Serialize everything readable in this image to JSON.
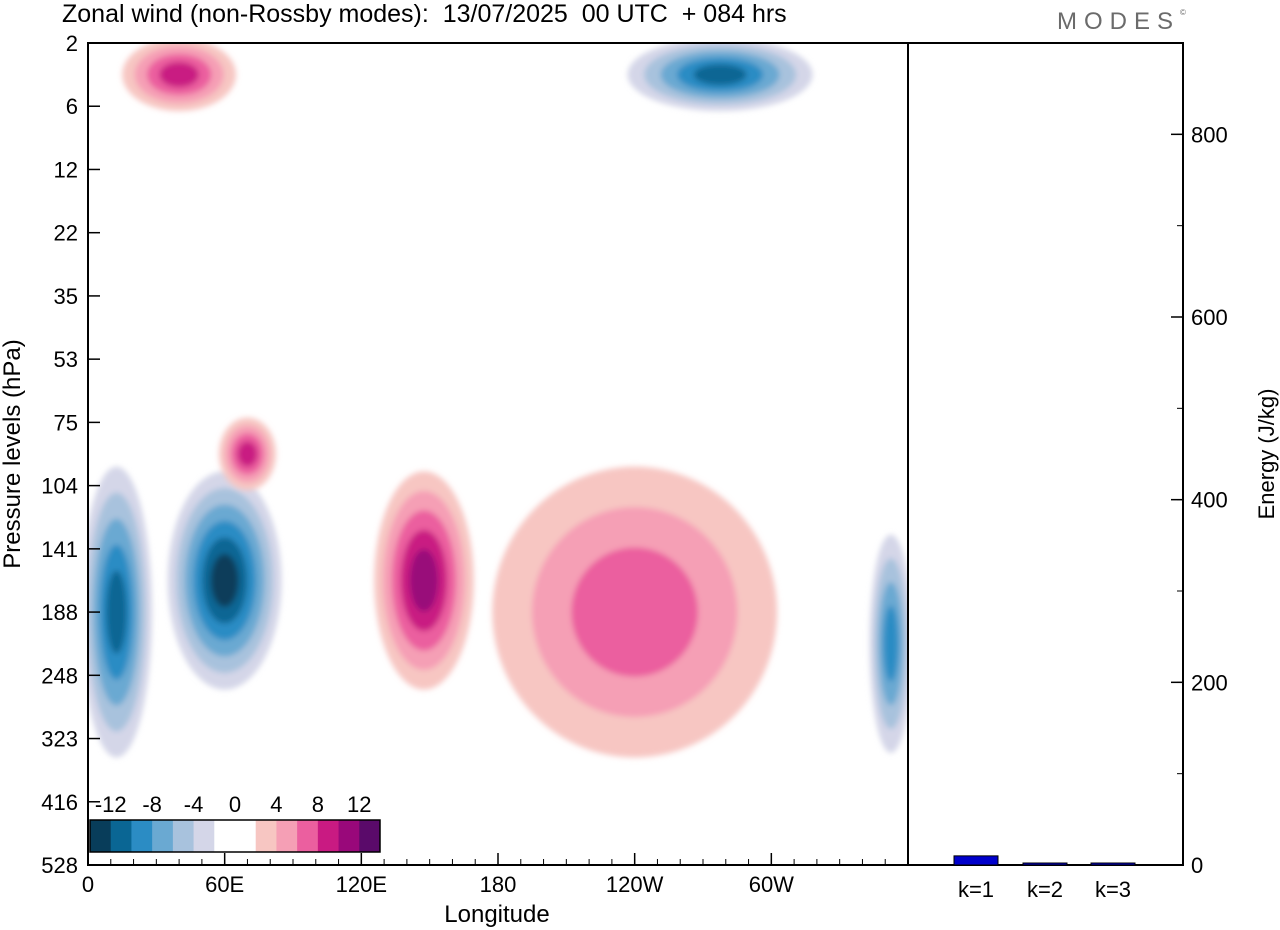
{
  "title": "Zonal wind (non-Rossby modes):  13/07/2025  00 UTC  + 084 hrs",
  "logo": "MODES",
  "chart_data": [
    {
      "type": "heatmap",
      "name": "zonal-wind-section",
      "xlabel": "Longitude",
      "ylabel": "Pressure levels (hPa)",
      "x_ticks": [
        "0",
        "60E",
        "120E",
        "180",
        "120W",
        "60W"
      ],
      "x_tick_degrees": [
        0,
        60,
        120,
        180,
        240,
        300
      ],
      "xlim": [
        0,
        360
      ],
      "y_ticks": [
        "2",
        "6",
        "12",
        "22",
        "35",
        "53",
        "75",
        "104",
        "141",
        "188",
        "248",
        "323",
        "416",
        "528"
      ],
      "colorbar": {
        "labels": [
          "-12",
          "-8",
          "-4",
          "0",
          "4",
          "8",
          "12"
        ],
        "colors": [
          "#083d5a",
          "#0a6694",
          "#2b8cc4",
          "#6aa9d2",
          "#a8c2dd",
          "#d4d6e8",
          "#ffffff",
          "#ffffff",
          "#f7c6c2",
          "#f59fb5",
          "#eb5f9f",
          "#c91a82",
          "#99087a",
          "#5a0a6a"
        ]
      },
      "features": [
        {
          "lon": [
            40,
            80
          ],
          "level": [
            104,
            248
          ],
          "value": -14
        },
        {
          "lon": [
            0,
            25
          ],
          "level": [
            104,
            323
          ],
          "value": -10
        },
        {
          "lon": [
            130,
            165
          ],
          "level": [
            104,
            248
          ],
          "value": 10
        },
        {
          "lon": [
            190,
            290
          ],
          "level": [
            104,
            323
          ],
          "value": 6
        },
        {
          "lon": [
            20,
            60
          ],
          "level": [
            2,
            6
          ],
          "value": 8
        },
        {
          "lon": [
            245,
            310
          ],
          "level": [
            2,
            6
          ],
          "value": -10
        },
        {
          "lon": [
            60,
            80
          ],
          "level": [
            75,
            104
          ],
          "value": 8
        },
        {
          "lon": [
            345,
            360
          ],
          "level": [
            141,
            323
          ],
          "value": -8
        }
      ]
    },
    {
      "type": "bar",
      "name": "energy-spectrum",
      "categories": [
        "k=1",
        "k=2",
        "k=3"
      ],
      "values": [
        10,
        2,
        1
      ],
      "ylabel": "Energy (J/kg)",
      "ylim": [
        0,
        900
      ],
      "y_ticks": [
        0,
        200,
        400,
        600,
        800
      ],
      "bar_color": "#0000cc"
    }
  ]
}
